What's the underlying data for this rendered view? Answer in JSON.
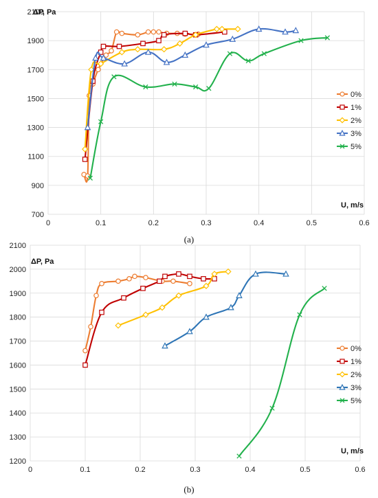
{
  "chart_data": [
    {
      "type": "line",
      "caption": "(a)",
      "ylabel": "ΔP, Pa",
      "xlabel": "U, m/s",
      "xlim": [
        0,
        0.6
      ],
      "ylim": [
        700,
        2100
      ],
      "xticks": [
        "0",
        "0.1",
        "0.2",
        "0.3",
        "0.4",
        "0.5",
        "0.6"
      ],
      "yticks": [
        "700",
        "900",
        "1100",
        "1300",
        "1500",
        "1700",
        "1900",
        "2100"
      ],
      "legend_position": "right",
      "series": [
        {
          "name": "0%",
          "color": "#ED7D31",
          "marker": "circle",
          "x": [
            0.068,
            0.075,
            0.078,
            0.085,
            0.095,
            0.11,
            0.12,
            0.13,
            0.14,
            0.17,
            0.19,
            0.2,
            0.21,
            0.225,
            0.245,
            0.26,
            0.285
          ],
          "y": [
            975,
            965,
            1520,
            1600,
            1700,
            1800,
            1830,
            1960,
            1950,
            1940,
            1960,
            1960,
            1960,
            1950,
            1950,
            1945,
            1945
          ]
        },
        {
          "name": "1%",
          "color": "#C00000",
          "marker": "square",
          "x": [
            0.07,
            0.085,
            0.1,
            0.105,
            0.135,
            0.18,
            0.21,
            0.22,
            0.26,
            0.28,
            0.335
          ],
          "y": [
            1080,
            1620,
            1820,
            1860,
            1860,
            1880,
            1900,
            1940,
            1950,
            1940,
            1960
          ]
        },
        {
          "name": "2%",
          "color": "#FFC000",
          "marker": "diamond",
          "x": [
            0.07,
            0.082,
            0.1,
            0.14,
            0.17,
            0.22,
            0.25,
            0.28,
            0.32,
            0.33,
            0.36
          ],
          "y": [
            1150,
            1700,
            1740,
            1820,
            1840,
            1840,
            1880,
            1940,
            1980,
            1980,
            1980
          ]
        },
        {
          "name": "3%",
          "color": "#4472C4",
          "marker": "triangle",
          "x": [
            0.075,
            0.09,
            0.105,
            0.145,
            0.19,
            0.225,
            0.26,
            0.3,
            0.35,
            0.4,
            0.45,
            0.47
          ],
          "y": [
            1300,
            1780,
            1780,
            1740,
            1820,
            1750,
            1800,
            1870,
            1910,
            1980,
            1960,
            1970
          ]
        },
        {
          "name": "5%",
          "color": "#22B14C",
          "marker": "x",
          "x": [
            0.08,
            0.1,
            0.125,
            0.185,
            0.24,
            0.28,
            0.305,
            0.345,
            0.38,
            0.41,
            0.48,
            0.53
          ],
          "y": [
            950,
            1340,
            1650,
            1580,
            1600,
            1580,
            1570,
            1810,
            1760,
            1810,
            1900,
            1920
          ]
        }
      ]
    },
    {
      "type": "line",
      "caption": "(b)",
      "ylabel": "ΔP, Pa",
      "xlabel": "U, m/s",
      "xlim": [
        0,
        0.6
      ],
      "ylim": [
        1200,
        2100
      ],
      "xticks": [
        "0",
        "0.1",
        "0.2",
        "0.3",
        "0.4",
        "0.5",
        "0.6"
      ],
      "yticks": [
        "1200",
        "1300",
        "1400",
        "1500",
        "1600",
        "1700",
        "1800",
        "1900",
        "2000",
        "2100"
      ],
      "legend_position": "right",
      "series": [
        {
          "name": "0%",
          "color": "#ED7D31",
          "marker": "circle",
          "x": [
            0.1,
            0.11,
            0.12,
            0.13,
            0.16,
            0.18,
            0.19,
            0.21,
            0.24,
            0.26,
            0.29
          ],
          "y": [
            1660,
            1760,
            1890,
            1940,
            1950,
            1960,
            1970,
            1965,
            1950,
            1950,
            1940
          ]
        },
        {
          "name": "1%",
          "color": "#C00000",
          "marker": "square",
          "x": [
            0.1,
            0.13,
            0.17,
            0.205,
            0.235,
            0.245,
            0.27,
            0.29,
            0.315,
            0.335
          ],
          "y": [
            1600,
            1820,
            1880,
            1920,
            1950,
            1970,
            1980,
            1970,
            1960,
            1960
          ]
        },
        {
          "name": "2%",
          "color": "#FFC000",
          "marker": "diamond",
          "x": [
            0.16,
            0.21,
            0.24,
            0.27,
            0.32,
            0.335,
            0.36
          ],
          "y": [
            1765,
            1810,
            1840,
            1890,
            1930,
            1980,
            1990
          ]
        },
        {
          "name": "3%",
          "color": "#2E75B6",
          "marker": "triangle",
          "x": [
            0.245,
            0.29,
            0.32,
            0.365,
            0.38,
            0.41,
            0.465
          ],
          "y": [
            1680,
            1740,
            1800,
            1840,
            1890,
            1980,
            1980
          ]
        },
        {
          "name": "5%",
          "color": "#22B14C",
          "marker": "x",
          "x": [
            0.38,
            0.44,
            0.49,
            0.535
          ],
          "y": [
            1220,
            1420,
            1810,
            1920
          ]
        }
      ]
    }
  ]
}
